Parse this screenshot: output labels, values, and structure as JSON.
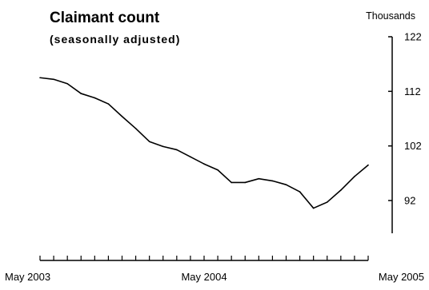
{
  "chart_data": {
    "type": "line",
    "title": "Claimant count",
    "subtitle": "(seasonally adjusted)",
    "ylabel": "Thousands",
    "ylim": [
      86,
      122
    ],
    "yticks": [
      122,
      112,
      102,
      92
    ],
    "y_axis_side": "right",
    "grid": false,
    "legend": "none",
    "x_tick_labels": [
      "May 2003",
      "May 2004",
      "May 2005"
    ],
    "x_tick_count": 25,
    "line_color": "#000000",
    "series": [
      {
        "values": [
          114.5,
          114.2,
          113.4,
          111.6,
          110.8,
          109.7,
          107.4,
          105.2,
          102.8,
          101.9,
          101.3,
          100.0,
          98.7,
          97.6,
          95.3,
          95.3,
          96.0,
          95.6,
          94.9,
          93.6,
          90.6,
          91.7,
          93.9,
          96.4,
          98.5
        ]
      }
    ]
  }
}
